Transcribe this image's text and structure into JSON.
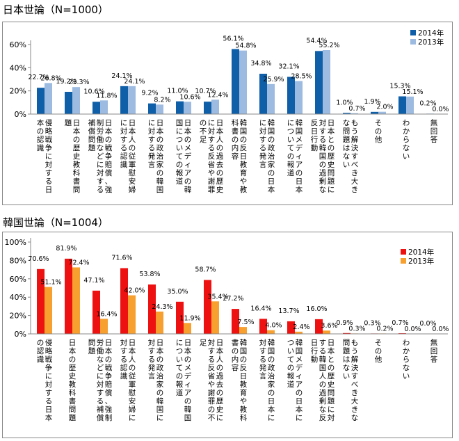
{
  "chart_data": [
    {
      "type": "bar",
      "title": "日本世論（N=1000）",
      "categories": [
        "侵略戦争に対する日本の認識",
        "日本の歴史教科書問題",
        "日本の戦争賠償、強制労働などに対する補償問題",
        "日本人の従軍慰安婦に対する認識",
        "日本の政治家の韓国に対する発言",
        "日本のメディアの韓国についての報道",
        "日本人の過去の歴史に対する反省や謝罪の不足",
        "韓国の反日教育や教科書の内容",
        "韓国の政治家の日本に対する発言",
        "韓国メディアの日本についての報道",
        "日本との歴史問題に対する韓国の過剰な反日行動",
        "もう解決すべき大きな問題はない",
        "その他",
        "わからない",
        "無回答"
      ],
      "series": [
        {
          "name": "2014年",
          "color": "#0f5fa8",
          "values": [
            22.7,
            19.2,
            10.6,
            24.1,
            9.2,
            11.0,
            10.7,
            56.1,
            34.8,
            32.1,
            54.4,
            1.0,
            1.9,
            15.3,
            0.2
          ]
        },
        {
          "name": "2013年",
          "color": "#9dbbe0",
          "values": [
            26.8,
            23.3,
            11.8,
            24.1,
            8.2,
            10.6,
            12.4,
            54.8,
            25.9,
            28.5,
            55.2,
            0.7,
            2.0,
            15.1,
            0.0
          ]
        }
      ],
      "ylim": [
        0,
        60
      ],
      "yticks": [
        "0%",
        "20%",
        "40%",
        "60%"
      ],
      "legend": "top-right",
      "grid": false
    },
    {
      "type": "bar",
      "title": "韓国世論（N=1004）",
      "categories": [
        "侵略戦争に対する日本の認識",
        "日本の歴史教科書問題",
        "日本の戦争賠償、強制労働などに対する補償問題",
        "日本人の従軍慰安婦に対する認識",
        "日本の政治家の韓国に対する発言",
        "日本のメディアの韓国についての報道",
        "日本人の過去の歴史に対する反省や謝罪の不足",
        "韓国の反日教育や教科書の内容",
        "韓国の政治家の日本に対する発言",
        "韓国メディアの日本についての報道",
        "日本との歴史問題に対する韓国人の過剰な反日行動",
        "もう解決すべき大きな問題はない",
        "その他",
        "わからない",
        "無回答"
      ],
      "series": [
        {
          "name": "2014年",
          "color": "#ee1111",
          "values": [
            70.6,
            81.9,
            47.1,
            71.6,
            53.8,
            35.0,
            58.7,
            27.2,
            16.4,
            13.7,
            16.0,
            0.9,
            0.3,
            0.7,
            0.0
          ]
        },
        {
          "name": "2013年",
          "color": "#f7a030",
          "values": [
            51.1,
            72.4,
            16.4,
            42.0,
            24.3,
            11.9,
            35.4,
            7.5,
            4.0,
            2.4,
            3.6,
            0.3,
            0.2,
            0.0,
            0.0
          ]
        }
      ],
      "ylim": [
        0,
        100
      ],
      "yticks": [
        "0%",
        "20%",
        "40%",
        "60%",
        "80%",
        "100%"
      ],
      "legend": "top-right",
      "grid": false
    }
  ]
}
